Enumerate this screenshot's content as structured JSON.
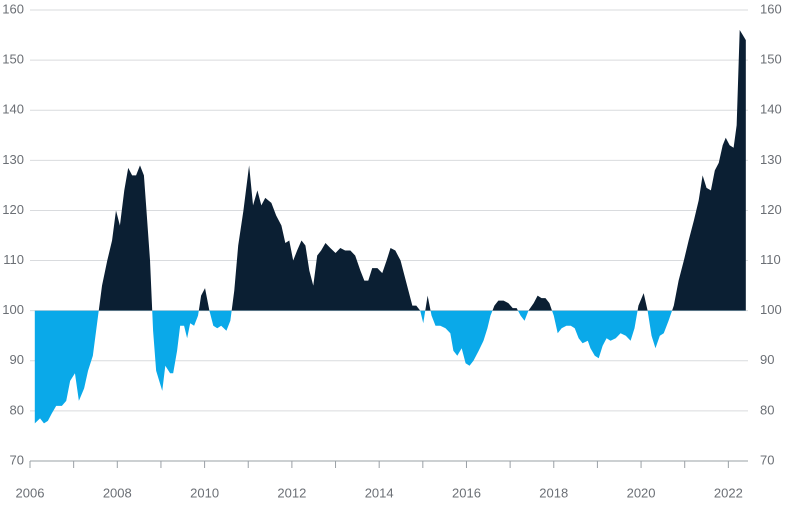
{
  "chart_data": {
    "type": "area",
    "x": [
      2006.11,
      2006.23,
      2006.32,
      2006.41,
      2006.5,
      2006.6,
      2006.73,
      2006.83,
      2006.92,
      2007.03,
      2007.12,
      2007.24,
      2007.33,
      2007.44,
      2007.56,
      2007.65,
      2007.77,
      2007.88,
      2007.97,
      2008.06,
      2008.16,
      2008.25,
      2008.34,
      2008.43,
      2008.52,
      2008.61,
      2008.66,
      2008.75,
      2008.82,
      2008.89,
      2009.03,
      2009.1,
      2009.21,
      2009.28,
      2009.37,
      2009.44,
      2009.53,
      2009.6,
      2009.67,
      2009.76,
      2009.85,
      2009.92,
      2010.01,
      2010.11,
      2010.2,
      2010.29,
      2010.38,
      2010.5,
      2010.59,
      2010.68,
      2010.77,
      2010.89,
      2011.02,
      2011.11,
      2011.21,
      2011.3,
      2011.39,
      2011.53,
      2011.64,
      2011.76,
      2011.85,
      2011.94,
      2012.03,
      2012.12,
      2012.22,
      2012.31,
      2012.4,
      2012.49,
      2012.58,
      2012.67,
      2012.77,
      2012.88,
      2013.0,
      2013.11,
      2013.22,
      2013.34,
      2013.45,
      2013.57,
      2013.66,
      2013.75,
      2013.84,
      2013.96,
      2014.07,
      2014.17,
      2014.26,
      2014.37,
      2014.49,
      2014.58,
      2014.67,
      2014.76,
      2014.85,
      2014.94,
      2015.01,
      2015.11,
      2015.2,
      2015.29,
      2015.4,
      2015.52,
      2015.63,
      2015.7,
      2015.79,
      2015.89,
      2015.98,
      2016.07,
      2016.16,
      2016.28,
      2016.39,
      2016.48,
      2016.55,
      2016.64,
      2016.73,
      2016.85,
      2016.96,
      2017.06,
      2017.15,
      2017.24,
      2017.33,
      2017.42,
      2017.54,
      2017.63,
      2017.72,
      2017.81,
      2017.9,
      2018.0,
      2018.09,
      2018.18,
      2018.29,
      2018.39,
      2018.48,
      2018.57,
      2018.66,
      2018.78,
      2018.84,
      2018.94,
      2019.03,
      2019.12,
      2019.21,
      2019.3,
      2019.42,
      2019.53,
      2019.65,
      2019.76,
      2019.85,
      2019.94,
      2020.06,
      2020.15,
      2020.24,
      2020.33,
      2020.43,
      2020.52,
      2020.63,
      2020.75,
      2020.86,
      2020.98,
      2021.09,
      2021.21,
      2021.32,
      2021.41,
      2021.5,
      2021.6,
      2021.69,
      2021.78,
      2021.87,
      2021.94,
      2022.03,
      2022.12,
      2022.19,
      2022.26,
      2022.33,
      2022.4
    ],
    "values": [
      77.5,
      78.5,
      77.5,
      78,
      79.5,
      81,
      81,
      82,
      86,
      87.5,
      82,
      84.5,
      88,
      91,
      99,
      105,
      110,
      114,
      120,
      117,
      124,
      128.5,
      127,
      127,
      129,
      127,
      121,
      110,
      96,
      88,
      84,
      89,
      87.5,
      87.5,
      92,
      97,
      97,
      94.5,
      97.5,
      97,
      99,
      103,
      104.5,
      100,
      97,
      96.5,
      97,
      96,
      98,
      104,
      113,
      120,
      129,
      121,
      124,
      121,
      122.5,
      121.5,
      119,
      117,
      113.5,
      114,
      110,
      112,
      114,
      113,
      108,
      105,
      111,
      112,
      113.5,
      112.5,
      111.5,
      112.5,
      112,
      112,
      111,
      108,
      106,
      106,
      108.5,
      108.5,
      107.5,
      110,
      112.5,
      112,
      110,
      107,
      104,
      101,
      101,
      100,
      97.5,
      103,
      99,
      97,
      97,
      96.5,
      95.5,
      92,
      91,
      92.5,
      89.5,
      89,
      90,
      92,
      94,
      96.5,
      99,
      101,
      102,
      102,
      101.5,
      100.5,
      100.5,
      99,
      98,
      100,
      101.5,
      103,
      102.5,
      102.5,
      101.5,
      99,
      95.5,
      96.5,
      97,
      97,
      96.5,
      94.5,
      93.5,
      94,
      92.5,
      91,
      90.5,
      93,
      94.5,
      94,
      94.5,
      95.5,
      95,
      94,
      96.5,
      101,
      103.5,
      100,
      95,
      92.5,
      95,
      95.5,
      98,
      101,
      106,
      110,
      114,
      118,
      122,
      127,
      124.5,
      124,
      128,
      129.5,
      133,
      134.5,
      133,
      132.5,
      137,
      156,
      155,
      154
    ],
    "baseline": 100,
    "color_above": "#0b1f33",
    "color_below": "#0aa9e9",
    "xlim": [
      2006,
      2022.45
    ],
    "xticks": [
      2006,
      2008,
      2010,
      2012,
      2014,
      2016,
      2018,
      2020,
      2022
    ],
    "xminorticks": [
      2007,
      2009,
      2011,
      2013,
      2015,
      2017,
      2019,
      2021
    ],
    "ylim": [
      70,
      160
    ],
    "yticks": [
      70,
      80,
      90,
      100,
      110,
      120,
      130,
      140,
      150,
      160
    ],
    "y2lim": [
      70,
      160
    ],
    "y2ticks": [
      70,
      80,
      90,
      100,
      110,
      120,
      130,
      140,
      150,
      160
    ],
    "grid": true
  }
}
